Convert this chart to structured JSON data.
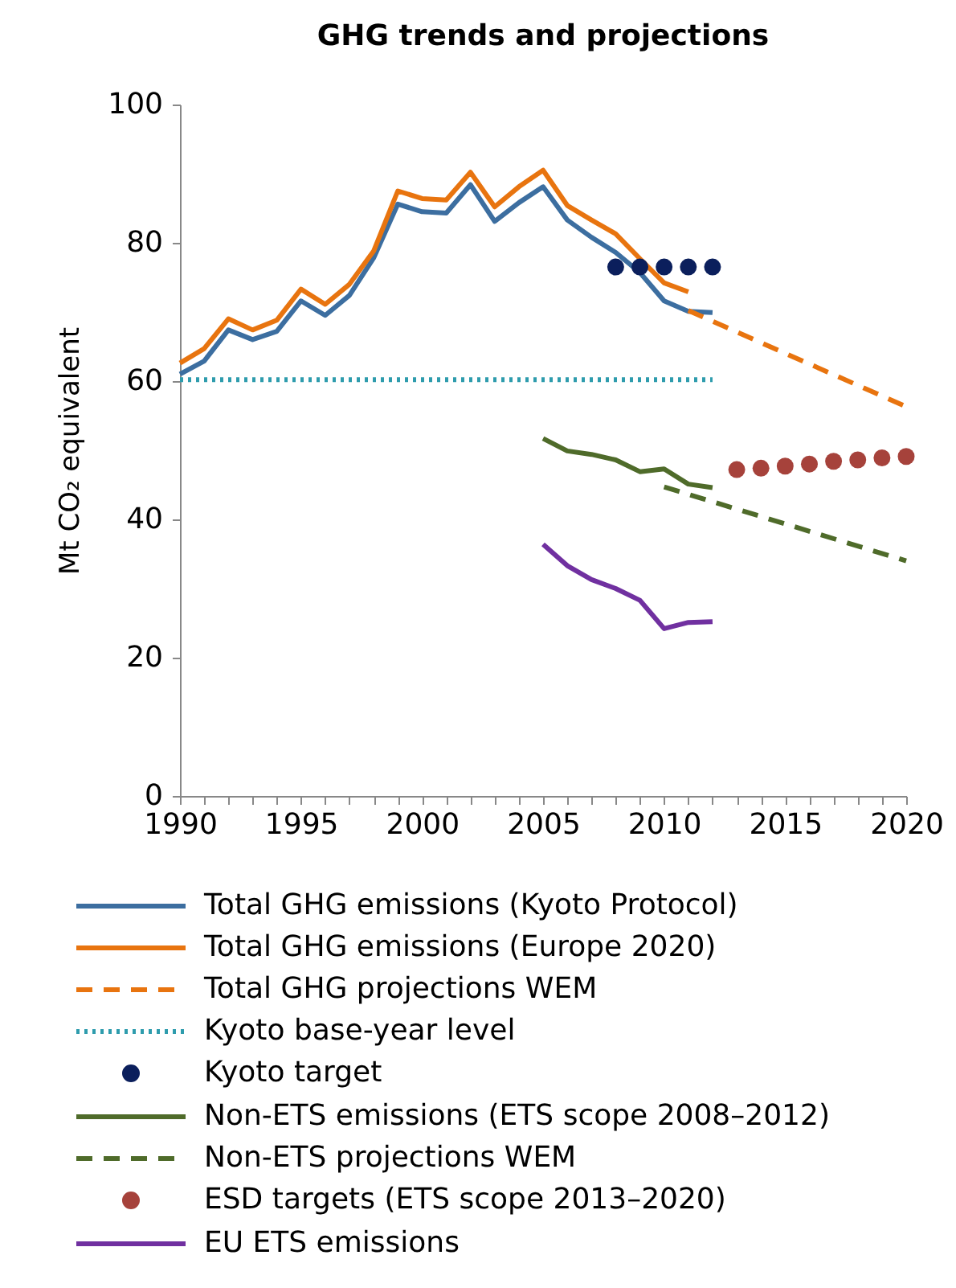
{
  "chart_data": {
    "type": "line",
    "title": "GHG trends and projections",
    "ylabel": "Mt CO₂ equivalent",
    "xlim": [
      1990,
      2020
    ],
    "ylim": [
      0,
      100
    ],
    "xticks": [
      1990,
      {
        "value": 1991,
        "label": null
      },
      {
        "value": 1992,
        "label": null
      },
      {
        "value": 1993,
        "label": null
      },
      {
        "value": 1994,
        "label": null
      },
      1995,
      {
        "value": 1996,
        "label": null
      },
      {
        "value": 1997,
        "label": null
      },
      {
        "value": 1998,
        "label": null
      },
      {
        "value": 1999,
        "label": null
      },
      2000,
      {
        "value": 2001,
        "label": null
      },
      {
        "value": 2002,
        "label": null
      },
      {
        "value": 2003,
        "label": null
      },
      {
        "value": 2004,
        "label": null
      },
      2005,
      {
        "value": 2006,
        "label": null
      },
      {
        "value": 2007,
        "label": null
      },
      {
        "value": 2008,
        "label": null
      },
      {
        "value": 2009,
        "label": null
      },
      2010,
      {
        "value": 2011,
        "label": null
      },
      {
        "value": 2012,
        "label": null
      },
      {
        "value": 2013,
        "label": null
      },
      {
        "value": 2014,
        "label": null
      },
      2015,
      {
        "value": 2016,
        "label": null
      },
      {
        "value": 2017,
        "label": null
      },
      {
        "value": 2018,
        "label": null
      },
      {
        "value": 2019,
        "label": null
      },
      2020
    ],
    "yticks": [
      0,
      20,
      40,
      60,
      80,
      100
    ],
    "grid": false,
    "legend": "bottom",
    "series": [
      {
        "name": "Total GHG emissions (Kyoto Protocol)",
        "type": "line",
        "line_style": "solid",
        "color": "#3c6ea0",
        "x": [
          1990,
          1991,
          1992,
          1993,
          1994,
          1995,
          1996,
          1997,
          1998,
          1999,
          2000,
          2001,
          2002,
          2003,
          2004,
          2005,
          2006,
          2007,
          2008,
          2009,
          2010,
          2011,
          2012
        ],
        "values": [
          61.0,
          62.9,
          67.4,
          66.0,
          67.2,
          71.6,
          69.5,
          72.4,
          77.8,
          85.6,
          84.5,
          84.3,
          88.4,
          83.1,
          85.8,
          88.1,
          83.3,
          80.8,
          78.6,
          75.7,
          71.6,
          70.1,
          69.9
        ]
      },
      {
        "name": "Total GHG emissions (Europe 2020)",
        "type": "line",
        "line_style": "solid",
        "color": "#e8740f",
        "x": [
          1990,
          1991,
          1992,
          1993,
          1994,
          1995,
          1996,
          1997,
          1998,
          1999,
          2000,
          2001,
          2002,
          2003,
          2004,
          2005,
          2006,
          2007,
          2008,
          2009,
          2010,
          2011
        ],
        "values": [
          62.6,
          64.7,
          69.0,
          67.4,
          68.8,
          73.3,
          71.1,
          74.0,
          78.8,
          87.5,
          86.4,
          86.2,
          90.2,
          85.2,
          88.1,
          90.5,
          85.4,
          83.3,
          81.3,
          77.7,
          74.2,
          72.9
        ]
      },
      {
        "name": "Total GHG projections WEM",
        "type": "line",
        "line_style": "dashed",
        "color": "#e8740f",
        "x": [
          2011,
          2020
        ],
        "values": [
          70.2,
          56.3
        ]
      },
      {
        "name": "Kyoto base-year level",
        "type": "line",
        "line_style": "dotted",
        "color": "#2e9cad",
        "x": [
          1990,
          2012
        ],
        "values": [
          60.2,
          60.2
        ]
      },
      {
        "name": "Kyoto target",
        "type": "scatter",
        "marker": "circle",
        "color": "#0b1f5c",
        "x": [
          2008,
          2009,
          2010,
          2011,
          2012
        ],
        "values": [
          76.5,
          76.5,
          76.5,
          76.5,
          76.5
        ]
      },
      {
        "name": "Non-ETS emissions (ETS scope 2008–2012)",
        "type": "line",
        "line_style": "solid",
        "color": "#4f6b2a",
        "x": [
          2005,
          2006,
          2007,
          2008,
          2009,
          2010,
          2011,
          2012
        ],
        "values": [
          51.7,
          49.9,
          49.4,
          48.6,
          46.9,
          47.3,
          45.1,
          44.6
        ]
      },
      {
        "name": "Non-ETS projections WEM",
        "type": "line",
        "line_style": "dashed",
        "color": "#4f6b2a",
        "x": [
          2010,
          2020
        ],
        "values": [
          44.7,
          34.0
        ]
      },
      {
        "name": "ESD targets (ETS scope 2013–2020)",
        "type": "scatter",
        "marker": "circle",
        "color": "#a6423b",
        "x": [
          2013,
          2014,
          2015,
          2016,
          2017,
          2018,
          2019,
          2020
        ],
        "values": [
          47.2,
          47.4,
          47.7,
          48.0,
          48.4,
          48.6,
          48.9,
          49.1
        ]
      },
      {
        "name": "EU ETS emissions",
        "type": "line",
        "line_style": "solid",
        "color": "#7030a0",
        "x": [
          2005,
          2006,
          2007,
          2008,
          2009,
          2010,
          2011,
          2012
        ],
        "values": [
          36.4,
          33.3,
          31.3,
          30.0,
          28.3,
          24.2,
          25.1,
          25.2
        ]
      }
    ]
  }
}
